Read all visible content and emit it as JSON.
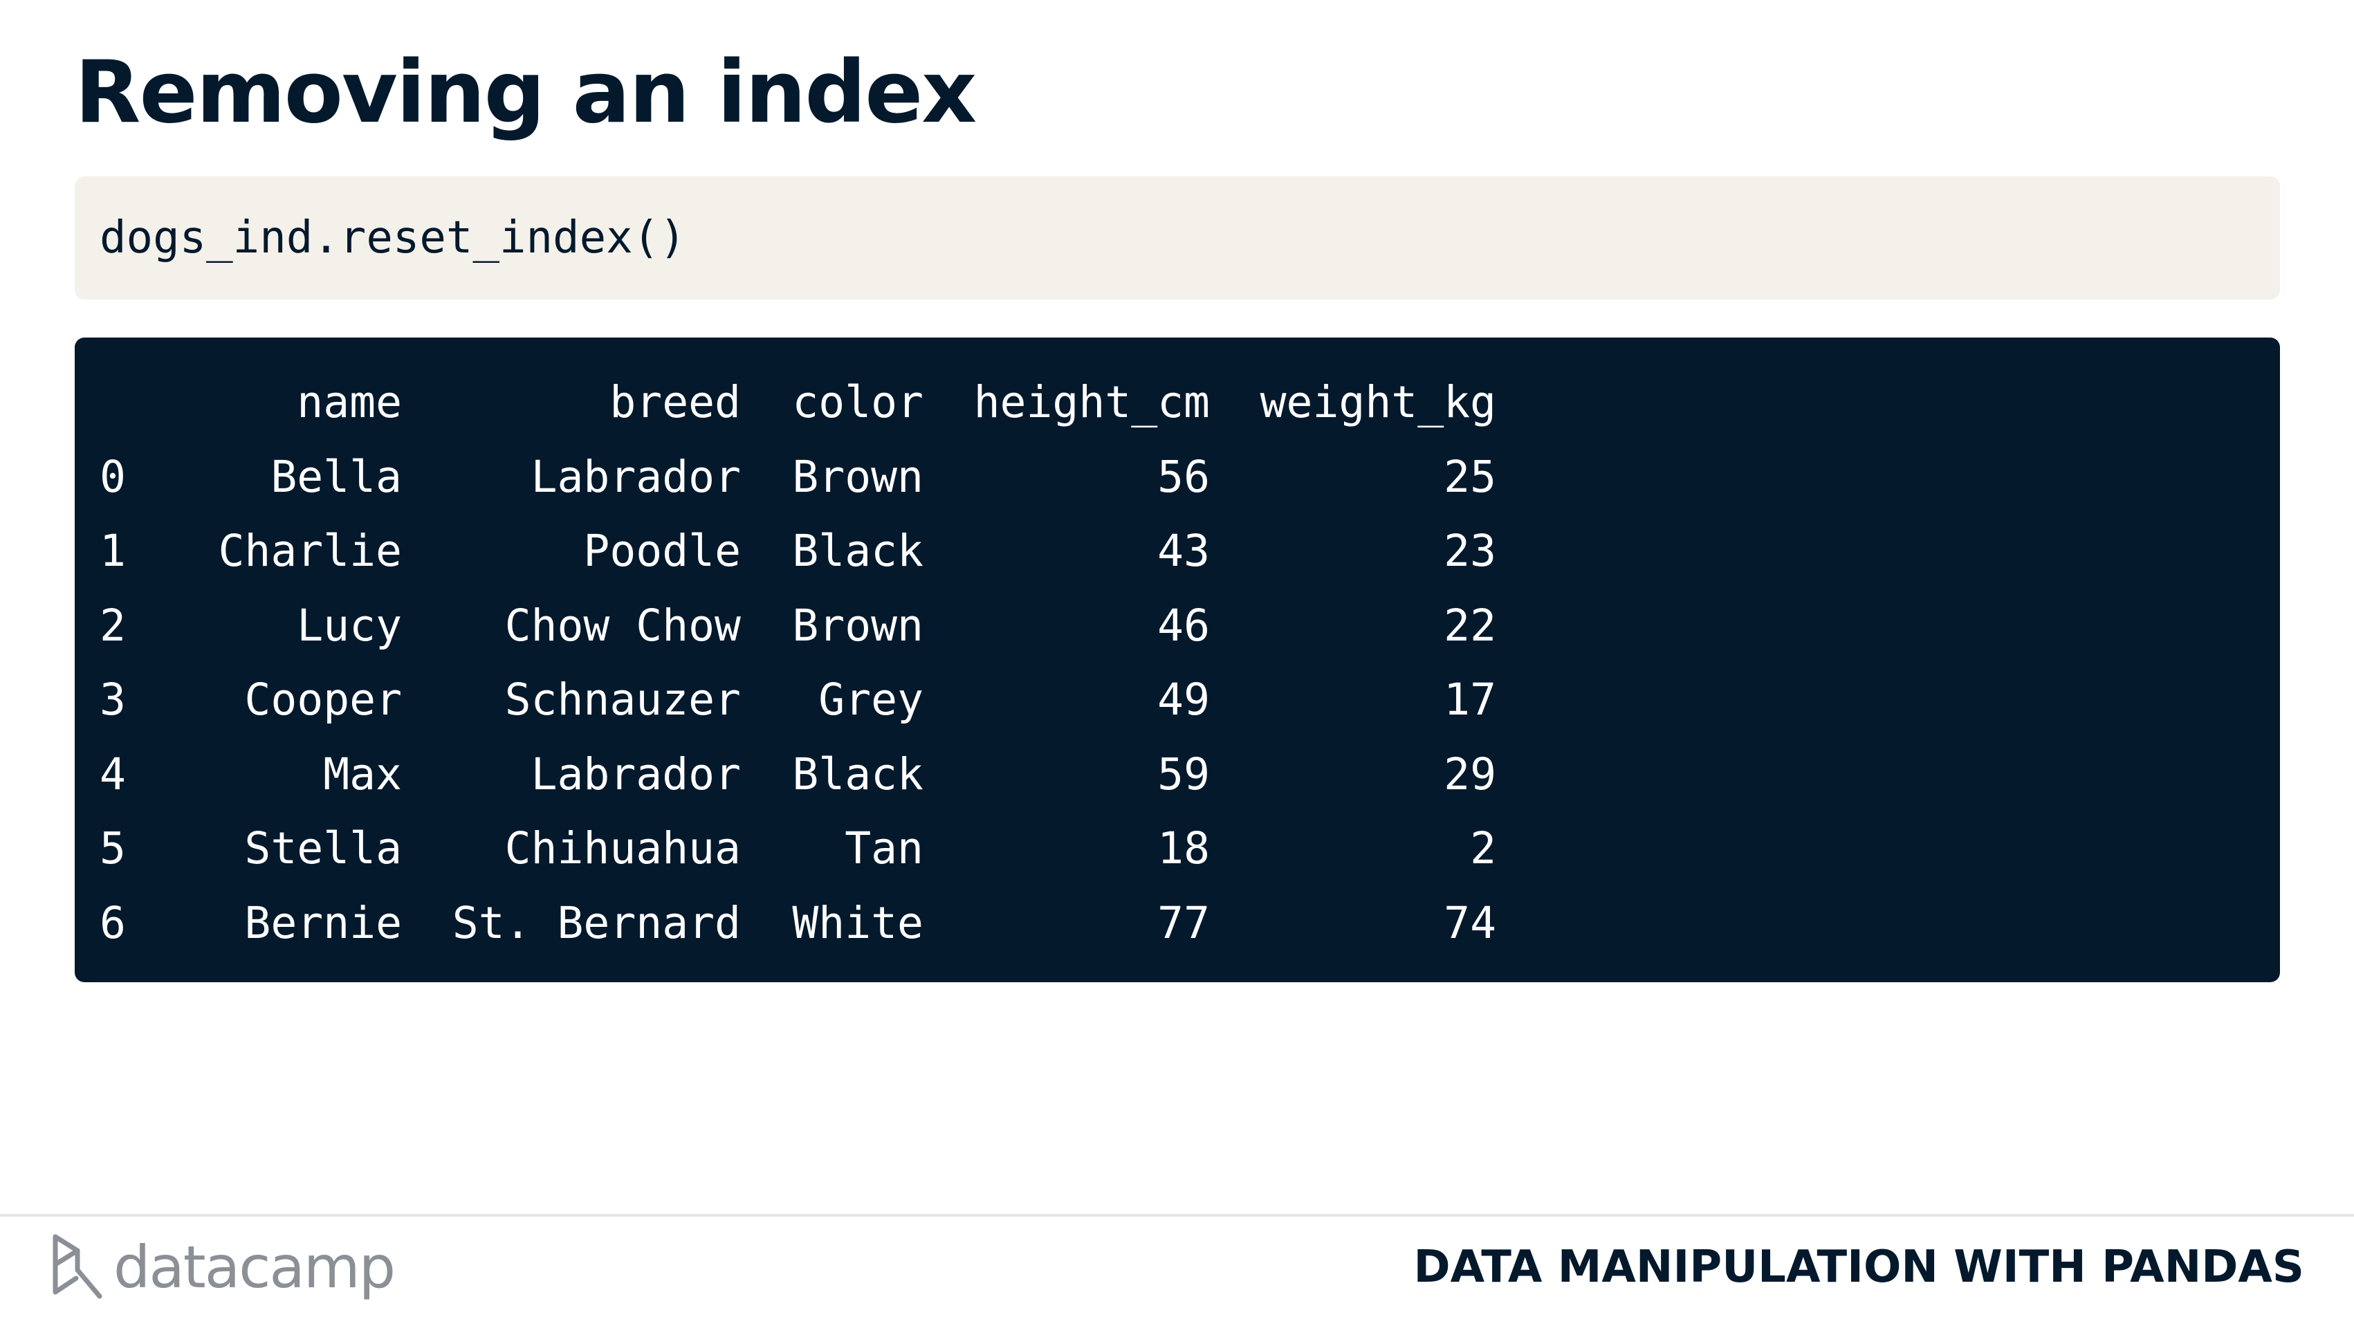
{
  "slide": {
    "title": "Removing an index",
    "code": "dogs_ind.reset_index()"
  },
  "output_table": {
    "columns": [
      "",
      "name",
      "breed",
      "color",
      "height_cm",
      "weight_kg"
    ],
    "rows": [
      [
        "0",
        "Bella",
        "Labrador",
        "Brown",
        "56",
        "25"
      ],
      [
        "1",
        "Charlie",
        "Poodle",
        "Black",
        "43",
        "23"
      ],
      [
        "2",
        "Lucy",
        "Chow Chow",
        "Brown",
        "46",
        "22"
      ],
      [
        "3",
        "Cooper",
        "Schnauzer",
        "Grey",
        "49",
        "17"
      ],
      [
        "4",
        "Max",
        "Labrador",
        "Black",
        "59",
        "29"
      ],
      [
        "5",
        "Stella",
        "Chihuahua",
        "Tan",
        "18",
        "2"
      ],
      [
        "6",
        "Bernie",
        "St. Bernard",
        "White",
        "77",
        "74"
      ]
    ]
  },
  "footer": {
    "logo_text": "datacamp",
    "logo_icon": "datacamp-logo-icon",
    "course_name": "DATA MANIPULATION WITH PANDAS"
  },
  "colors": {
    "navy": "#05192d",
    "code_bg": "#f4f1ea",
    "logo_gray": "#8b8f96"
  }
}
